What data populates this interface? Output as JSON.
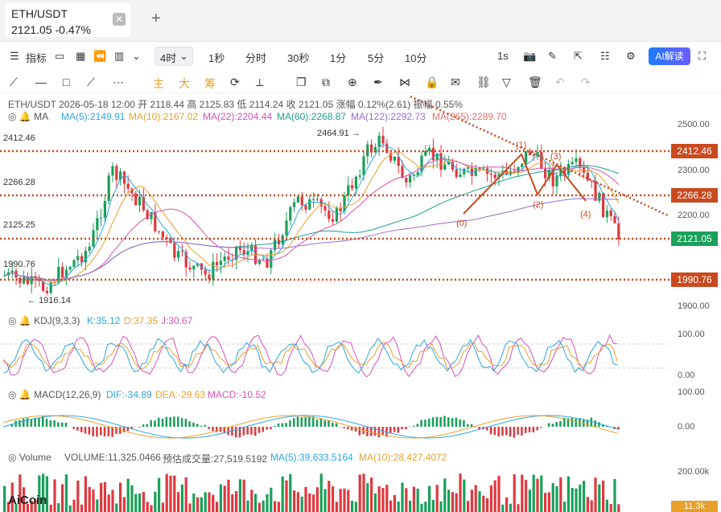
{
  "tab": {
    "symbol": "ETH/USDT",
    "price_change": "2121.05  -0.47%",
    "close_symbol": "✕",
    "add_symbol": "+"
  },
  "toolbar": {
    "indicators_label": "指标",
    "interval_selected": "4时",
    "intervals": [
      "1秒",
      "分时",
      "30秒",
      "1分",
      "5分",
      "10分"
    ],
    "right_interval": "1s",
    "ai_label": "AI解读"
  },
  "drawtools": {
    "main": "主",
    "big": "大",
    "chip": "筹"
  },
  "legend": {
    "ohlc": "ETH/USDT  2026-05-18 12:00  开 2118.44  高 2125.83  低 2114.24  收 2121.05  涨幅 0.12%(2.61)  振幅 0.55%",
    "ma_name": "MA",
    "ma5": "MA(5):2149.91",
    "ma10": "MA(10):2167.02",
    "ma22": "MA(22):2204.44",
    "ma60": "MA(60):2268.87",
    "ma122": "MA(122):2292.73",
    "ma265": "MA(265):2289.70",
    "kdj_name": "KDJ(9,3,3)",
    "k": "K:35.12",
    "d": "D:37.35",
    "j": "J:30.67",
    "macd_name": "MACD(12,26,9)",
    "dif": "DIF:-34.89",
    "dea": "DEA:-29.63",
    "macd": "MACD:-10.52",
    "vol_name": "Volume",
    "volume": "VOLUME:11,325.0466",
    "pred": "预估成交量:27,519.5192",
    "vma5": "MA(5):39,633.5164",
    "vma10": "MA(10):28,427.4072"
  },
  "levels": {
    "l1": "2412.46",
    "l2": "2266.28",
    "l3": "2125.25",
    "l4": "1990.76"
  },
  "marks": {
    "high": "2464.91",
    "low": "1916.14",
    "w0": "(0)",
    "w1": "(1)",
    "w2": "(2)",
    "w3": "(3)",
    "w4": "(4)"
  },
  "axis": {
    "p2500": "2500.00",
    "p2300": "2300.00",
    "p2200": "2200.00",
    "p1900": "1900.00",
    "k100": "100.00",
    "k0": "0.00",
    "m100": "100.00",
    "m0": "0.00",
    "v200": "200.00k",
    "v11": "11.3k"
  },
  "right_tags": {
    "r2412": "2412.46",
    "r2266": "2266.28",
    "r2121": "2121.05",
    "r1990": "1990.76"
  },
  "logo": "AiCoin",
  "colors": {
    "up": "#19a05a",
    "down": "#e0383e",
    "level": "#c94a1f",
    "ma5": "#2aa7e0",
    "ma10": "#e7a12b",
    "ma22": "#d84fb8",
    "ma60": "#19a08e",
    "ma122": "#9c6ad0",
    "ma265": "#e86d6d"
  }
}
